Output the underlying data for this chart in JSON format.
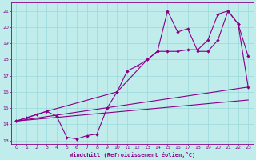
{
  "xlabel": "Windchill (Refroidissement éolien,°C)",
  "bg_color": "#c0ecec",
  "grid_color": "#98d8d8",
  "line_color": "#880088",
  "xlim": [
    -0.5,
    23.5
  ],
  "ylim": [
    12.8,
    21.5
  ],
  "yticks": [
    13,
    14,
    15,
    16,
    17,
    18,
    19,
    20,
    21
  ],
  "xticks": [
    0,
    1,
    2,
    3,
    4,
    5,
    6,
    7,
    8,
    9,
    10,
    11,
    12,
    13,
    14,
    15,
    16,
    17,
    18,
    19,
    20,
    21,
    22,
    23
  ],
  "line1_x": [
    0,
    1,
    2,
    3,
    4,
    5,
    6,
    7,
    8,
    9,
    10,
    11,
    12,
    13,
    14,
    15,
    16,
    17,
    18,
    19,
    20,
    21,
    22,
    23
  ],
  "line1_y": [
    14.2,
    14.4,
    14.6,
    14.8,
    14.5,
    13.2,
    13.1,
    13.3,
    13.4,
    15.0,
    16.0,
    17.3,
    17.6,
    18.0,
    18.5,
    21.0,
    19.7,
    19.9,
    18.5,
    18.5,
    19.2,
    21.0,
    20.2,
    18.2
  ],
  "line2_x": [
    0,
    3,
    10,
    13,
    14,
    15,
    16,
    17,
    18,
    19,
    20,
    21,
    22,
    23
  ],
  "line2_y": [
    14.2,
    14.8,
    16.0,
    18.0,
    18.5,
    18.5,
    18.5,
    18.6,
    18.6,
    19.2,
    20.8,
    21.0,
    20.2,
    16.3
  ],
  "trend1_x": [
    0,
    23
  ],
  "trend1_y": [
    14.2,
    16.3
  ],
  "trend2_x": [
    0,
    23
  ],
  "trend2_y": [
    14.2,
    15.5
  ]
}
